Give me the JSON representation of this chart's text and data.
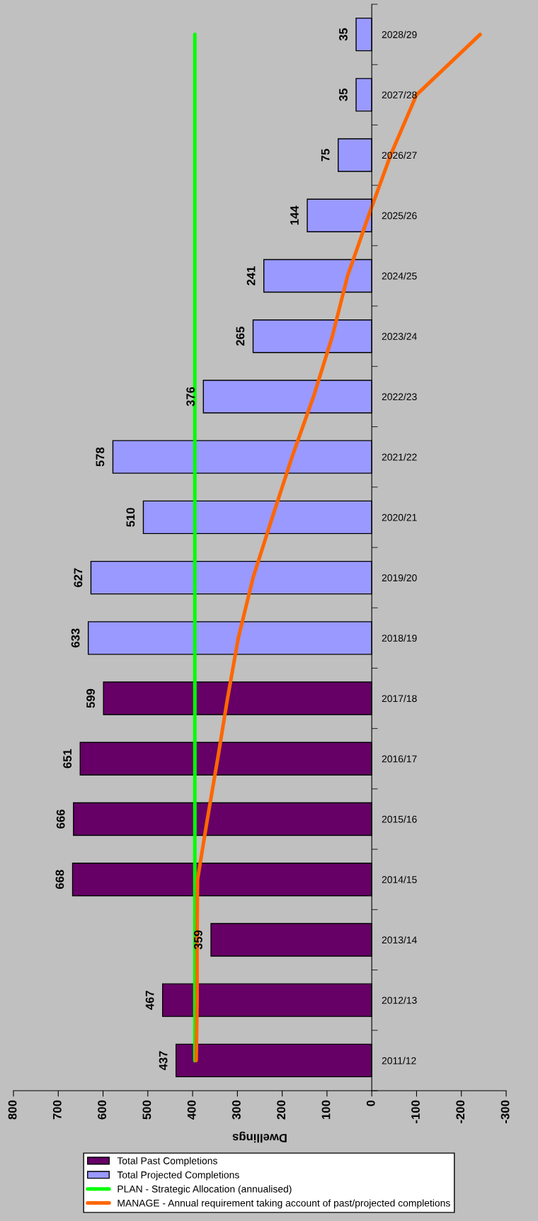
{
  "chart_data": {
    "type": "bar",
    "orientation": "horizontal",
    "xlabel": "Dwellings",
    "categories": [
      "2028/29",
      "2027/28",
      "2026/27",
      "2025/26",
      "2024/25",
      "2023/24",
      "2022/23",
      "2021/22",
      "2020/21",
      "2019/20",
      "2018/19",
      "2017/18",
      "2016/17",
      "2015/16",
      "2014/15",
      "2013/14",
      "2012/13",
      "2011/12"
    ],
    "series": [
      {
        "name": "Total Past Completions",
        "color": "#660066",
        "values": [
          null,
          null,
          null,
          null,
          null,
          null,
          null,
          null,
          null,
          null,
          null,
          599,
          651,
          666,
          668,
          359,
          467,
          437
        ],
        "value_labels": [
          null,
          null,
          null,
          null,
          null,
          null,
          null,
          null,
          null,
          null,
          null,
          "599",
          "651",
          "666",
          "668",
          "359",
          "467",
          "437"
        ]
      },
      {
        "name": "Total Projected Completions",
        "color": "#9999ff",
        "values": [
          35,
          35,
          75,
          144,
          241,
          265,
          376,
          578,
          510,
          627,
          633,
          null,
          null,
          null,
          null,
          null,
          null,
          null
        ],
        "value_labels": [
          "35",
          "35",
          "75",
          "144",
          "241",
          "265",
          "376",
          "578",
          "510",
          "627",
          "633",
          null,
          null,
          null,
          null,
          null,
          null,
          null
        ]
      },
      {
        "name": "PLAN - Strategic Allocation (annualised)",
        "type": "line",
        "color": "#00ff00",
        "values": [
          395,
          395,
          395,
          395,
          395,
          395,
          395,
          395,
          395,
          395,
          395,
          395,
          395,
          395,
          395,
          395,
          395,
          395
        ]
      },
      {
        "name": "MANAGE - Annual requirement taking account of past/projected completions",
        "type": "line",
        "color": "#ff6600",
        "values": [
          -242,
          -100,
          -42,
          7,
          54,
          88,
          130,
          178,
          222,
          265,
          298,
          322,
          344,
          367,
          389,
          390,
          390,
          392
        ]
      }
    ],
    "xlim": [
      800,
      -300
    ],
    "xticks": [
      800,
      700,
      600,
      500,
      400,
      300,
      200,
      100,
      0,
      -100,
      -200,
      -300
    ],
    "legend": "bottom",
    "grid": false
  }
}
